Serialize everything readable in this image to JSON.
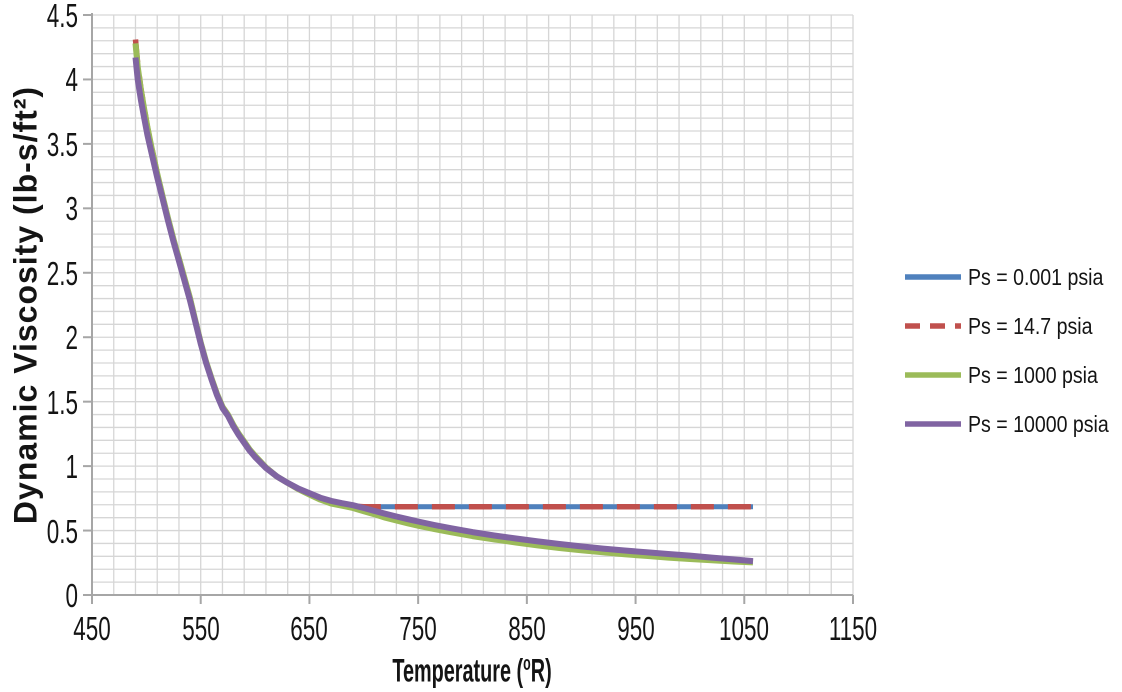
{
  "chart_data": {
    "type": "line",
    "title": "",
    "xlabel": "Temperature (°R)",
    "ylabel": "Dynamic Viscosity (lb-s/ft²)",
    "xlim": [
      450,
      1150
    ],
    "ylim": [
      0,
      4.5
    ],
    "x_ticks": [
      450,
      550,
      650,
      750,
      850,
      950,
      1050,
      1150
    ],
    "y_ticks": [
      0,
      0.5,
      1,
      1.5,
      2,
      2.5,
      3,
      3.5,
      4,
      4.5
    ],
    "x_minor_step": 20,
    "y_minor_step": 0.1,
    "grid": "major and minor gridlines on",
    "legend_position": "right",
    "series": [
      {
        "name": "Ps = 0.001 psia",
        "color": "#4F81BD",
        "style": "solid",
        "width": 5,
        "points": [
          [
            490,
            4.26
          ],
          [
            492,
            4.08
          ],
          [
            495,
            3.9
          ],
          [
            498,
            3.76
          ],
          [
            501,
            3.62
          ],
          [
            505,
            3.46
          ],
          [
            510,
            3.27
          ],
          [
            515,
            3.09
          ],
          [
            520,
            2.92
          ],
          [
            525,
            2.76
          ],
          [
            530,
            2.61
          ],
          [
            535,
            2.46
          ],
          [
            540,
            2.31
          ],
          [
            545,
            2.13
          ],
          [
            550,
            1.96
          ],
          [
            555,
            1.81
          ],
          [
            560,
            1.68
          ],
          [
            565,
            1.56
          ],
          [
            570,
            1.46
          ],
          [
            575,
            1.4
          ],
          [
            580,
            1.32
          ],
          [
            585,
            1.25
          ],
          [
            590,
            1.19
          ],
          [
            595,
            1.13
          ],
          [
            600,
            1.08
          ],
          [
            610,
            0.99
          ],
          [
            620,
            0.92
          ],
          [
            630,
            0.87
          ],
          [
            640,
            0.82
          ],
          [
            650,
            0.78
          ],
          [
            660,
            0.74
          ],
          [
            670,
            0.715
          ],
          [
            680,
            0.7
          ],
          [
            690,
            0.69
          ],
          [
            700,
            0.685
          ],
          [
            750,
            0.685
          ],
          [
            800,
            0.685
          ],
          [
            850,
            0.685
          ],
          [
            900,
            0.685
          ],
          [
            950,
            0.685
          ],
          [
            1000,
            0.685
          ],
          [
            1058,
            0.685
          ]
        ]
      },
      {
        "name": "Ps = 14.7 psia",
        "color": "#C0504D",
        "style": "dashed",
        "width": 5.5,
        "points": [
          [
            490,
            4.31
          ],
          [
            492,
            4.12
          ],
          [
            495,
            3.93
          ],
          [
            498,
            3.78
          ],
          [
            501,
            3.63
          ],
          [
            505,
            3.47
          ],
          [
            510,
            3.27
          ],
          [
            515,
            3.09
          ],
          [
            520,
            2.92
          ],
          [
            525,
            2.76
          ],
          [
            530,
            2.61
          ],
          [
            535,
            2.46
          ],
          [
            540,
            2.31
          ],
          [
            545,
            2.13
          ],
          [
            550,
            1.96
          ],
          [
            555,
            1.81
          ],
          [
            560,
            1.68
          ],
          [
            565,
            1.56
          ],
          [
            570,
            1.46
          ],
          [
            575,
            1.4
          ],
          [
            580,
            1.32
          ],
          [
            585,
            1.25
          ],
          [
            590,
            1.19
          ],
          [
            595,
            1.13
          ],
          [
            600,
            1.08
          ],
          [
            610,
            0.99
          ],
          [
            620,
            0.92
          ],
          [
            630,
            0.87
          ],
          [
            640,
            0.82
          ],
          [
            650,
            0.78
          ],
          [
            660,
            0.74
          ],
          [
            670,
            0.715
          ],
          [
            680,
            0.7
          ],
          [
            690,
            0.69
          ],
          [
            700,
            0.685
          ],
          [
            750,
            0.685
          ],
          [
            800,
            0.685
          ],
          [
            850,
            0.685
          ],
          [
            900,
            0.685
          ],
          [
            950,
            0.685
          ],
          [
            1000,
            0.685
          ],
          [
            1058,
            0.685
          ]
        ]
      },
      {
        "name": "Ps = 1000 psia",
        "color": "#9BBB59",
        "style": "solid",
        "width": 6,
        "points": [
          [
            490,
            4.28
          ],
          [
            492,
            4.1
          ],
          [
            495,
            3.92
          ],
          [
            498,
            3.77
          ],
          [
            501,
            3.63
          ],
          [
            505,
            3.46
          ],
          [
            510,
            3.27
          ],
          [
            515,
            3.09
          ],
          [
            520,
            2.92
          ],
          [
            525,
            2.76
          ],
          [
            530,
            2.61
          ],
          [
            535,
            2.46
          ],
          [
            540,
            2.31
          ],
          [
            545,
            2.13
          ],
          [
            550,
            1.96
          ],
          [
            555,
            1.81
          ],
          [
            560,
            1.68
          ],
          [
            565,
            1.56
          ],
          [
            570,
            1.46
          ],
          [
            575,
            1.4
          ],
          [
            580,
            1.32
          ],
          [
            585,
            1.25
          ],
          [
            590,
            1.19
          ],
          [
            595,
            1.13
          ],
          [
            600,
            1.08
          ],
          [
            610,
            0.99
          ],
          [
            620,
            0.92
          ],
          [
            630,
            0.87
          ],
          [
            640,
            0.82
          ],
          [
            650,
            0.78
          ],
          [
            660,
            0.74
          ],
          [
            670,
            0.71
          ],
          [
            680,
            0.693
          ],
          [
            690,
            0.675
          ],
          [
            700,
            0.65
          ],
          [
            710,
            0.625
          ],
          [
            720,
            0.6
          ],
          [
            730,
            0.578
          ],
          [
            740,
            0.557
          ],
          [
            750,
            0.538
          ],
          [
            765,
            0.511
          ],
          [
            780,
            0.487
          ],
          [
            800,
            0.457
          ],
          [
            820,
            0.431
          ],
          [
            840,
            0.407
          ],
          [
            860,
            0.385
          ],
          [
            880,
            0.365
          ],
          [
            900,
            0.347
          ],
          [
            920,
            0.331
          ],
          [
            940,
            0.316
          ],
          [
            960,
            0.303
          ],
          [
            980,
            0.29
          ],
          [
            1000,
            0.279
          ],
          [
            1020,
            0.269
          ],
          [
            1040,
            0.26
          ],
          [
            1058,
            0.253
          ]
        ]
      },
      {
        "name": "Ps = 10000 psia",
        "color": "#8064A2",
        "style": "solid",
        "width": 6,
        "points": [
          [
            490,
            4.17
          ],
          [
            492,
            4.0
          ],
          [
            495,
            3.84
          ],
          [
            498,
            3.7
          ],
          [
            501,
            3.57
          ],
          [
            505,
            3.42
          ],
          [
            510,
            3.24
          ],
          [
            515,
            3.07
          ],
          [
            520,
            2.9
          ],
          [
            525,
            2.74
          ],
          [
            530,
            2.59
          ],
          [
            535,
            2.44
          ],
          [
            540,
            2.29
          ],
          [
            545,
            2.12
          ],
          [
            550,
            1.95
          ],
          [
            555,
            1.8
          ],
          [
            560,
            1.67
          ],
          [
            565,
            1.55
          ],
          [
            570,
            1.45
          ],
          [
            575,
            1.39
          ],
          [
            580,
            1.31
          ],
          [
            585,
            1.24
          ],
          [
            590,
            1.18
          ],
          [
            595,
            1.12
          ],
          [
            600,
            1.07
          ],
          [
            610,
            0.985
          ],
          [
            620,
            0.92
          ],
          [
            630,
            0.87
          ],
          [
            640,
            0.825
          ],
          [
            650,
            0.79
          ],
          [
            660,
            0.755
          ],
          [
            670,
            0.73
          ],
          [
            680,
            0.712
          ],
          [
            690,
            0.697
          ],
          [
            700,
            0.675
          ],
          [
            710,
            0.652
          ],
          [
            720,
            0.63
          ],
          [
            730,
            0.609
          ],
          [
            740,
            0.589
          ],
          [
            750,
            0.57
          ],
          [
            765,
            0.543
          ],
          [
            780,
            0.518
          ],
          [
            800,
            0.488
          ],
          [
            820,
            0.462
          ],
          [
            840,
            0.438
          ],
          [
            860,
            0.416
          ],
          [
            880,
            0.396
          ],
          [
            900,
            0.377
          ],
          [
            920,
            0.36
          ],
          [
            940,
            0.345
          ],
          [
            960,
            0.331
          ],
          [
            980,
            0.318
          ],
          [
            1000,
            0.306
          ],
          [
            1020,
            0.29
          ],
          [
            1040,
            0.276
          ],
          [
            1058,
            0.263
          ]
        ]
      }
    ]
  },
  "axes": {
    "x_title": {
      "pre": "Temperature (",
      "sup": "o",
      "post": "R)"
    },
    "y_title": "Dynamic Viscosity (lb-s/ft²)",
    "x_tick_labels": [
      "450",
      "550",
      "650",
      "750",
      "850",
      "950",
      "1050",
      "1150"
    ],
    "y_tick_labels": [
      "0",
      "0.5",
      "1",
      "1.5",
      "2",
      "2.5",
      "3",
      "3.5",
      "4",
      "4.5"
    ]
  },
  "colors": {
    "gridline": "#D6D6D6",
    "axis_line": "#A6A6A6",
    "text": "#141414",
    "background": "#FFFFFF"
  }
}
